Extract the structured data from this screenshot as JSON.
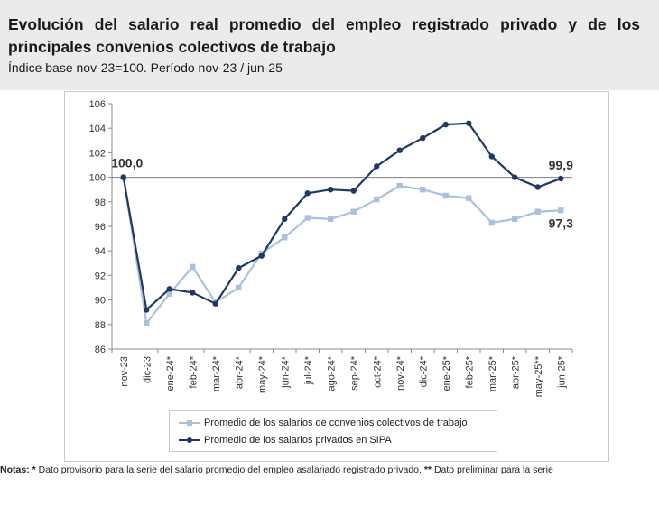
{
  "header": {
    "title": "Evolución del salario real promedio del empleo registrado privado y de los principales convenios colectivos de trabajo",
    "subtitle": "Índice base nov-23=100. Período nov-23 / jun-25"
  },
  "chart_data": {
    "type": "line",
    "title": "Evolución del salario real promedio del empleo registrado privado y de los principales convenios colectivos de trabajo",
    "subtitle": "Índice base nov-23=100. Período nov-23 / jun-25",
    "xlabel": "",
    "ylabel": "",
    "ylim": [
      86,
      106
    ],
    "yticks": [
      86,
      88,
      90,
      92,
      94,
      96,
      98,
      100,
      102,
      104,
      106
    ],
    "grid": false,
    "reference_line": 100,
    "legend_position": "bottom",
    "categories": [
      "nov-23",
      "dic-23",
      "ene-24*",
      "feb-24*",
      "mar-24*",
      "abr-24*",
      "may-24*",
      "jun-24*",
      "jul-24*",
      "ago-24*",
      "sep-24*",
      "oct-24*",
      "nov-24*",
      "dic-24*",
      "ene-25*",
      "feb-25*",
      "mar-25*",
      "abr-25*",
      "may-25**",
      "jun-25*"
    ],
    "series": [
      {
        "name": "Promedio de los salarios de convenios colectivos de trabajo",
        "color": "#a9c1db",
        "marker": "square",
        "values": [
          100.0,
          88.1,
          90.5,
          92.7,
          89.8,
          91.0,
          93.8,
          95.1,
          96.7,
          96.6,
          97.2,
          98.2,
          99.3,
          99.0,
          98.5,
          98.3,
          96.3,
          96.6,
          97.2,
          97.3
        ]
      },
      {
        "name": "Promedio de los salarios privados en SIPA",
        "color": "#1f3864",
        "marker": "circle",
        "values": [
          100.0,
          89.2,
          90.9,
          90.6,
          89.7,
          92.6,
          93.6,
          96.6,
          98.7,
          99.0,
          98.9,
          100.9,
          102.2,
          103.2,
          104.3,
          104.4,
          101.7,
          100.0,
          99.2,
          99.9
        ]
      }
    ],
    "annotations": [
      {
        "series": 1,
        "index": 0,
        "text": "100,0"
      },
      {
        "series": 1,
        "index": 19,
        "text": "99,9"
      },
      {
        "series": 0,
        "index": 19,
        "text": "97,3"
      }
    ]
  },
  "notes": {
    "label": "Notas:",
    "marker1": "*",
    "text1": " Dato provisorio para la serie del salario promedio del empleo asalariado registrado privado. ",
    "marker2": "**",
    "text2": " Dato preliminar para la serie"
  }
}
